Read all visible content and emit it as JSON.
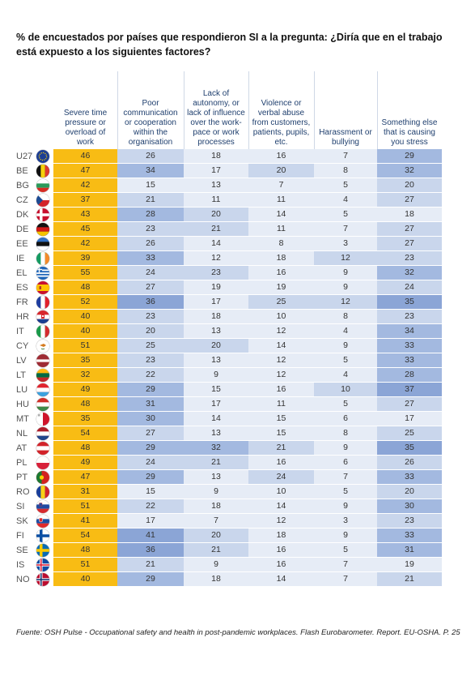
{
  "title": "% de encuestados por países que respondieron SI a la pregunta: ¿Diría que en el trabajo está expuesto a los siguientes factores?",
  "source": "Fuente: OSH Pulse - Occupational safety and health in post-pandemic workplaces. Flash Eurobarometer. Report. EU-OSHA. P. 25",
  "colors": {
    "first_col": "#f8bc14",
    "light": "#e6ecf6",
    "mid": "#c9d6ec",
    "strong": "#a3b9e0",
    "stronger": "#8ba5d6"
  },
  "chart_data": {
    "type": "table",
    "columns": [
      "Severe time pressure or overload of work",
      "Poor communication or cooperation within the organisation",
      "Lack of autonomy, or lack of influence over the work-pace or work processes",
      "Violence or verbal abuse from customers, patients, pupils, etc.",
      "Harassment or bullying",
      "Something else that is causing you stress"
    ],
    "rows": [
      {
        "code": "U27",
        "flag": "eu-flag-icon",
        "values": [
          46,
          26,
          18,
          16,
          7,
          29
        ]
      },
      {
        "code": "BE",
        "flag": "belgium-flag-icon",
        "values": [
          47,
          34,
          17,
          20,
          8,
          32
        ]
      },
      {
        "code": "BG",
        "flag": "bulgaria-flag-icon",
        "values": [
          42,
          15,
          13,
          7,
          5,
          20
        ]
      },
      {
        "code": "CZ",
        "flag": "czechia-flag-icon",
        "values": [
          37,
          21,
          11,
          11,
          4,
          27
        ]
      },
      {
        "code": "DK",
        "flag": "denmark-flag-icon",
        "values": [
          43,
          28,
          20,
          14,
          5,
          18
        ]
      },
      {
        "code": "DE",
        "flag": "germany-flag-icon",
        "values": [
          45,
          23,
          21,
          11,
          7,
          27
        ]
      },
      {
        "code": "EE",
        "flag": "estonia-flag-icon",
        "values": [
          42,
          26,
          14,
          8,
          3,
          27
        ]
      },
      {
        "code": "IE",
        "flag": "ireland-flag-icon",
        "values": [
          39,
          33,
          12,
          18,
          12,
          23
        ]
      },
      {
        "code": "EL",
        "flag": "greece-flag-icon",
        "values": [
          55,
          24,
          23,
          16,
          9,
          32
        ]
      },
      {
        "code": "ES",
        "flag": "spain-flag-icon",
        "values": [
          48,
          27,
          19,
          19,
          9,
          24
        ]
      },
      {
        "code": "FR",
        "flag": "france-flag-icon",
        "values": [
          52,
          36,
          17,
          25,
          12,
          35
        ]
      },
      {
        "code": "HR",
        "flag": "croatia-flag-icon",
        "values": [
          40,
          23,
          18,
          10,
          8,
          23
        ]
      },
      {
        "code": "IT",
        "flag": "italy-flag-icon",
        "values": [
          40,
          20,
          13,
          12,
          4,
          34
        ]
      },
      {
        "code": "CY",
        "flag": "cyprus-flag-icon",
        "values": [
          51,
          25,
          20,
          14,
          9,
          33
        ]
      },
      {
        "code": "LV",
        "flag": "latvia-flag-icon",
        "values": [
          35,
          23,
          13,
          12,
          5,
          33
        ]
      },
      {
        "code": "LT",
        "flag": "lithuania-flag-icon",
        "values": [
          32,
          22,
          9,
          12,
          4,
          28
        ]
      },
      {
        "code": "LU",
        "flag": "luxembourg-flag-icon",
        "values": [
          49,
          29,
          15,
          16,
          10,
          37
        ]
      },
      {
        "code": "HU",
        "flag": "hungary-flag-icon",
        "values": [
          48,
          31,
          17,
          11,
          5,
          27
        ]
      },
      {
        "code": "MT",
        "flag": "malta-flag-icon",
        "values": [
          35,
          30,
          14,
          15,
          6,
          17
        ]
      },
      {
        "code": "NL",
        "flag": "netherlands-flag-icon",
        "values": [
          54,
          27,
          13,
          15,
          8,
          25
        ]
      },
      {
        "code": "AT",
        "flag": "austria-flag-icon",
        "values": [
          48,
          29,
          32,
          21,
          9,
          35
        ]
      },
      {
        "code": "PL",
        "flag": "poland-flag-icon",
        "values": [
          49,
          24,
          21,
          16,
          6,
          26
        ]
      },
      {
        "code": "PT",
        "flag": "portugal-flag-icon",
        "values": [
          47,
          29,
          13,
          24,
          7,
          33
        ]
      },
      {
        "code": "RO",
        "flag": "romania-flag-icon",
        "values": [
          31,
          15,
          9,
          10,
          5,
          20
        ]
      },
      {
        "code": "SI",
        "flag": "slovenia-flag-icon",
        "values": [
          51,
          22,
          18,
          14,
          9,
          30
        ]
      },
      {
        "code": "SK",
        "flag": "slovakia-flag-icon",
        "values": [
          41,
          17,
          7,
          12,
          3,
          23
        ]
      },
      {
        "code": "FI",
        "flag": "finland-flag-icon",
        "values": [
          54,
          41,
          20,
          18,
          9,
          33
        ]
      },
      {
        "code": "SE",
        "flag": "sweden-flag-icon",
        "values": [
          48,
          36,
          21,
          16,
          5,
          31
        ]
      },
      {
        "code": "IS",
        "flag": "iceland-flag-icon",
        "values": [
          51,
          21,
          9,
          16,
          7,
          19
        ]
      },
      {
        "code": "NO",
        "flag": "norway-flag-icon",
        "values": [
          40,
          29,
          18,
          14,
          7,
          21
        ]
      }
    ]
  }
}
